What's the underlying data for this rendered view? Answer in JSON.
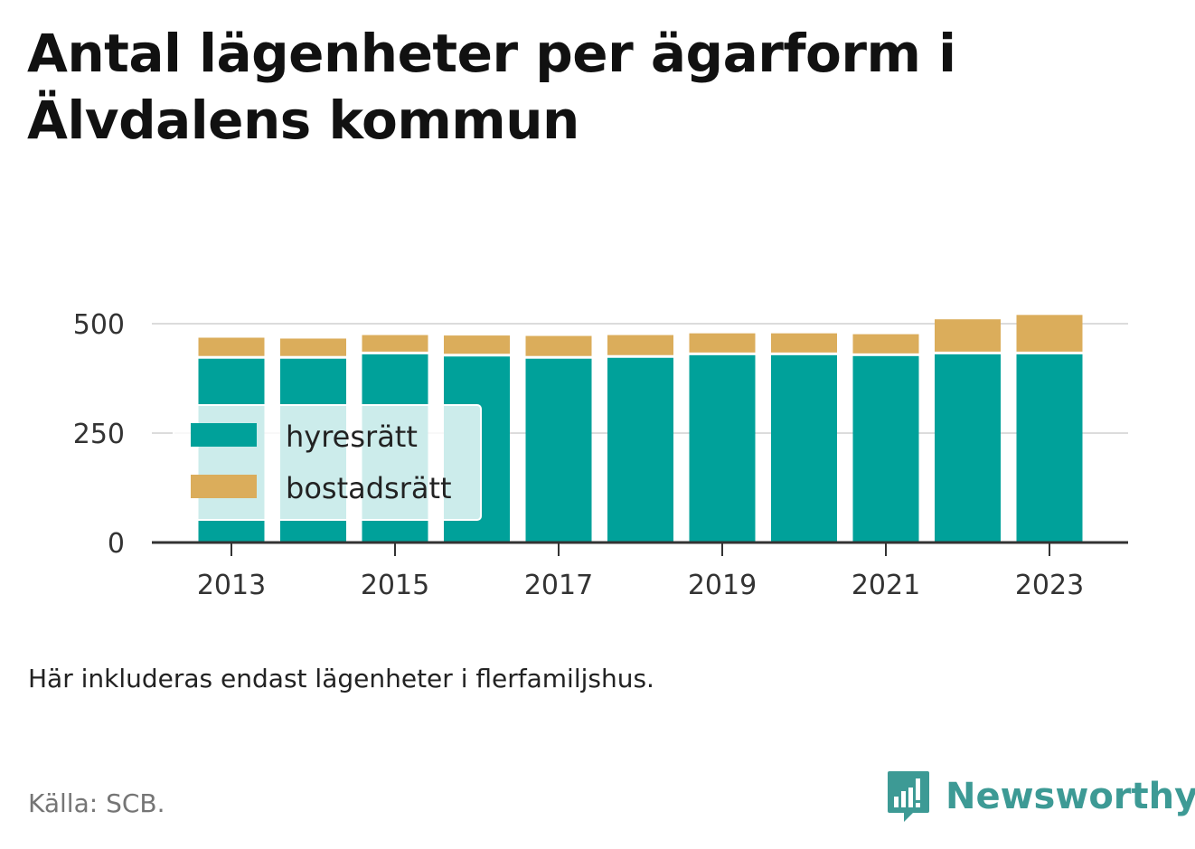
{
  "title_line1": "Antal lägenheter per ägarform i",
  "title_line2": "Älvdalens kommun",
  "note": "Här inkluderas endast lägenheter i flerfamiljshus.",
  "source": "Källa: SCB.",
  "brand": {
    "name": "Newsworthy",
    "icon": "bar-chart-speech-bubble-icon",
    "color": "#3d9a95"
  },
  "chart_data": {
    "type": "bar",
    "stacked": true,
    "categories": [
      "2013",
      "2014",
      "2015",
      "2016",
      "2017",
      "2018",
      "2019",
      "2020",
      "2021",
      "2022",
      "2023"
    ],
    "x_tick_labels": [
      "2013",
      "2015",
      "2017",
      "2019",
      "2021",
      "2023"
    ],
    "series": [
      {
        "name": "hyresrätt",
        "color": "#00a19a",
        "values": [
          420,
          420,
          430,
          425,
          420,
          422,
          428,
          428,
          426,
          430,
          430
        ]
      },
      {
        "name": "bostadsrätt",
        "color": "#dbad5b",
        "values": [
          48,
          46,
          44,
          48,
          52,
          52,
          50,
          50,
          50,
          80,
          90
        ]
      }
    ],
    "ylim": [
      0,
      550
    ],
    "y_ticks": [
      0,
      250,
      500
    ],
    "grid": true,
    "legend_position": "inside-left"
  }
}
